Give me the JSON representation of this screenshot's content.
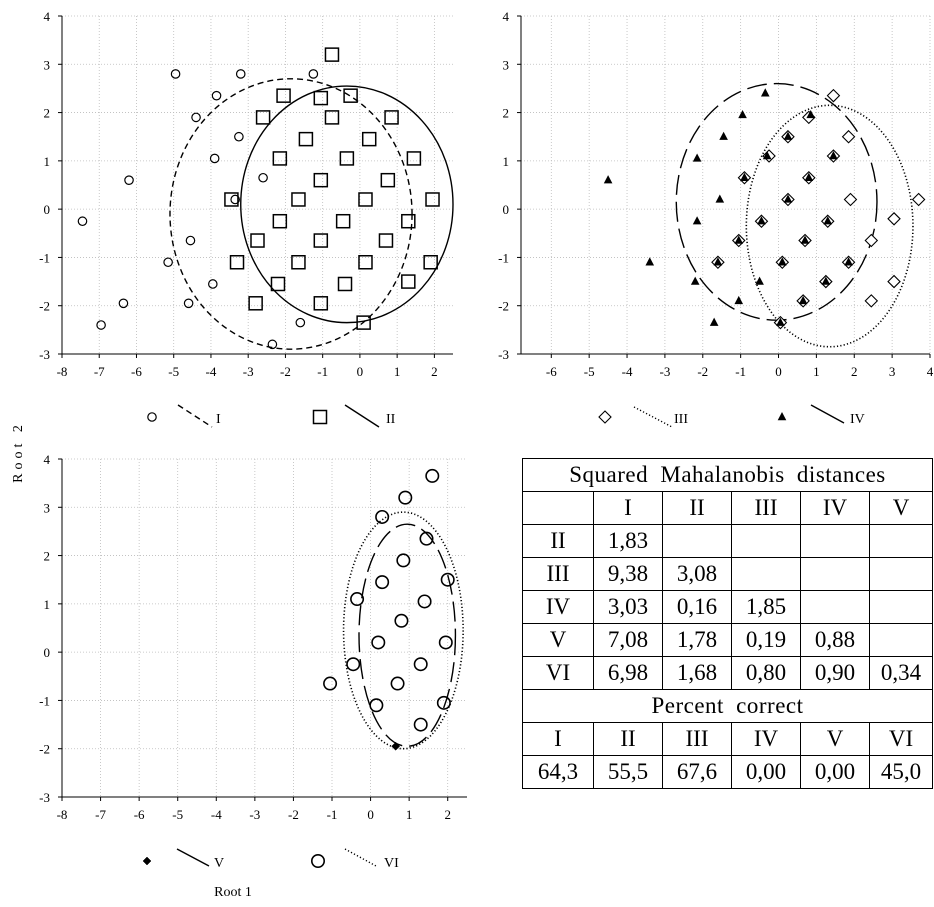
{
  "axis_titles": {
    "x": "Root 1",
    "y": "Root 2"
  },
  "chart_data": [
    {
      "type": "scatter",
      "xlim": [
        -8,
        2.5
      ],
      "ylim": [
        -3,
        4
      ],
      "xticks": [
        "-8",
        "-7",
        "-6",
        "-5",
        "-4",
        "-3",
        "-2",
        "-1",
        "0",
        "1",
        "2"
      ],
      "yticks": [
        "-3",
        "-2",
        "-1",
        "0",
        "1",
        "2",
        "3",
        "4"
      ],
      "grid": true,
      "legend": [
        {
          "label": "I",
          "marker": "circle-small",
          "line": "short-dash"
        },
        {
          "label": "II",
          "marker": "square",
          "line": "solid"
        }
      ],
      "series": [
        {
          "name": "I",
          "marker": "circle-small",
          "points": [
            [
              -7.45,
              -0.25
            ],
            [
              -6.95,
              -2.4
            ],
            [
              -6.35,
              -1.95
            ],
            [
              -6.2,
              0.6
            ],
            [
              -5.15,
              -1.1
            ],
            [
              -4.95,
              2.8
            ],
            [
              -4.6,
              -1.95
            ],
            [
              -4.55,
              -0.65
            ],
            [
              -4.4,
              1.9
            ],
            [
              -3.85,
              2.35
            ],
            [
              -3.9,
              1.05
            ],
            [
              -3.95,
              -1.55
            ],
            [
              -3.35,
              0.2
            ],
            [
              -3.25,
              1.5
            ],
            [
              -3.2,
              2.8
            ],
            [
              -2.6,
              0.65
            ],
            [
              -1.25,
              2.8
            ],
            [
              -1.6,
              -2.35
            ],
            [
              -2.35,
              -2.8
            ]
          ]
        },
        {
          "name": "II",
          "marker": "square",
          "points": [
            [
              -0.75,
              3.2
            ],
            [
              -2.05,
              2.35
            ],
            [
              -1.05,
              2.3
            ],
            [
              -0.25,
              2.35
            ],
            [
              -2.6,
              1.9
            ],
            [
              -0.75,
              1.9
            ],
            [
              0.85,
              1.9
            ],
            [
              -1.45,
              1.45
            ],
            [
              0.25,
              1.45
            ],
            [
              -2.15,
              1.05
            ],
            [
              -0.35,
              1.05
            ],
            [
              1.45,
              1.05
            ],
            [
              -1.05,
              0.6
            ],
            [
              0.75,
              0.6
            ],
            [
              -3.45,
              0.2
            ],
            [
              -1.65,
              0.2
            ],
            [
              0.15,
              0.2
            ],
            [
              1.95,
              0.2
            ],
            [
              -2.15,
              -0.25
            ],
            [
              -0.45,
              -0.25
            ],
            [
              1.3,
              -0.25
            ],
            [
              -2.75,
              -0.65
            ],
            [
              -1.05,
              -0.65
            ],
            [
              0.7,
              -0.65
            ],
            [
              -3.3,
              -1.1
            ],
            [
              -1.65,
              -1.1
            ],
            [
              0.15,
              -1.1
            ],
            [
              1.9,
              -1.1
            ],
            [
              -2.2,
              -1.55
            ],
            [
              -0.4,
              -1.55
            ],
            [
              1.3,
              -1.5
            ],
            [
              -2.8,
              -1.95
            ],
            [
              -1.05,
              -1.95
            ],
            [
              0.1,
              -2.35
            ]
          ]
        }
      ],
      "ellipses": [
        {
          "series": "I",
          "cx": -1.85,
          "cy": -0.1,
          "rx": 3.25,
          "ry": 2.8,
          "style": "short-dash"
        },
        {
          "series": "II",
          "cx": -0.35,
          "cy": 0.1,
          "rx": 2.85,
          "ry": 2.45,
          "style": "solid"
        }
      ]
    },
    {
      "type": "scatter",
      "xlim": [
        -6.8,
        4
      ],
      "ylim": [
        -3,
        4
      ],
      "xticks": [
        "-6",
        "-5",
        "-4",
        "-3",
        "-2",
        "-1",
        "0",
        "1",
        "2",
        "3",
        "4"
      ],
      "yticks": [
        "-3",
        "-2",
        "-1",
        "0",
        "1",
        "2",
        "3",
        "4"
      ],
      "grid": true,
      "legend": [
        {
          "label": "III",
          "marker": "diamond-open",
          "line": "dotted"
        },
        {
          "label": "IV",
          "marker": "triangle-filled",
          "line": "long-dash"
        }
      ],
      "series": [
        {
          "name": "III",
          "marker": "diamond-open",
          "points": [
            [
              1.45,
              2.35
            ],
            [
              1.85,
              1.5
            ],
            [
              0.25,
              1.5
            ],
            [
              0.8,
              1.9
            ],
            [
              -0.25,
              1.1
            ],
            [
              1.45,
              1.1
            ],
            [
              -0.9,
              0.65
            ],
            [
              0.8,
              0.65
            ],
            [
              0.25,
              0.2
            ],
            [
              1.9,
              0.2
            ],
            [
              3.7,
              0.2
            ],
            [
              -0.45,
              -0.25
            ],
            [
              1.3,
              -0.25
            ],
            [
              3.05,
              -0.2
            ],
            [
              -1.05,
              -0.65
            ],
            [
              0.7,
              -0.65
            ],
            [
              2.45,
              -0.65
            ],
            [
              -1.6,
              -1.1
            ],
            [
              0.1,
              -1.1
            ],
            [
              1.85,
              -1.1
            ],
            [
              3.05,
              -1.5
            ],
            [
              1.25,
              -1.5
            ],
            [
              0.65,
              -1.9
            ],
            [
              2.45,
              -1.9
            ],
            [
              0.05,
              -2.35
            ]
          ]
        },
        {
          "name": "IV",
          "marker": "triangle-filled",
          "points": [
            [
              -0.35,
              2.4
            ],
            [
              0.85,
              1.95
            ],
            [
              -0.95,
              1.95
            ],
            [
              -1.45,
              1.5
            ],
            [
              0.25,
              1.5
            ],
            [
              -2.15,
              1.05
            ],
            [
              -0.3,
              1.1
            ],
            [
              1.45,
              1.1
            ],
            [
              -0.9,
              0.65
            ],
            [
              0.8,
              0.65
            ],
            [
              -4.5,
              0.6
            ],
            [
              -1.55,
              0.2
            ],
            [
              0.25,
              0.2
            ],
            [
              -2.15,
              -0.25
            ],
            [
              -0.45,
              -0.25
            ],
            [
              1.3,
              -0.25
            ],
            [
              -1.05,
              -0.65
            ],
            [
              0.7,
              -0.65
            ],
            [
              -3.4,
              -1.1
            ],
            [
              -1.6,
              -1.1
            ],
            [
              0.1,
              -1.1
            ],
            [
              1.85,
              -1.1
            ],
            [
              -2.2,
              -1.5
            ],
            [
              -0.5,
              -1.5
            ],
            [
              1.25,
              -1.5
            ],
            [
              -1.05,
              -1.9
            ],
            [
              0.65,
              -1.9
            ],
            [
              -1.7,
              -2.35
            ],
            [
              0.05,
              -2.35
            ]
          ]
        }
      ],
      "ellipses": [
        {
          "series": "III",
          "cx": 1.35,
          "cy": -0.35,
          "rx": 2.2,
          "ry": 2.5,
          "style": "dotted"
        },
        {
          "series": "IV",
          "cx": -0.05,
          "cy": 0.15,
          "rx": 2.65,
          "ry": 2.45,
          "style": "long-dash"
        }
      ]
    },
    {
      "type": "scatter",
      "xlim": [
        -8,
        2.5
      ],
      "ylim": [
        -3,
        4
      ],
      "xticks": [
        "-8",
        "-7",
        "-6",
        "-5",
        "-4",
        "-3",
        "-2",
        "-1",
        "0",
        "1",
        "2"
      ],
      "yticks": [
        "-3",
        "-2",
        "-1",
        "0",
        "1",
        "2",
        "3",
        "4"
      ],
      "grid": true,
      "legend": [
        {
          "label": "V",
          "marker": "diamond-filled",
          "line": "long-dash"
        },
        {
          "label": "VI",
          "marker": "circle-large",
          "line": "dotted"
        }
      ],
      "series": [
        {
          "name": "V",
          "marker": "diamond-filled",
          "points": [
            [
              0.65,
              -1.95
            ]
          ]
        },
        {
          "name": "VI",
          "marker": "circle-large",
          "points": [
            [
              1.6,
              3.65
            ],
            [
              0.9,
              3.2
            ],
            [
              0.3,
              2.8
            ],
            [
              1.45,
              2.35
            ],
            [
              0.85,
              1.9
            ],
            [
              0.3,
              1.45
            ],
            [
              2.0,
              1.5
            ],
            [
              -0.35,
              1.1
            ],
            [
              1.4,
              1.05
            ],
            [
              0.8,
              0.65
            ],
            [
              0.2,
              0.2
            ],
            [
              1.95,
              0.2
            ],
            [
              -0.45,
              -0.25
            ],
            [
              1.3,
              -0.25
            ],
            [
              -1.05,
              -0.65
            ],
            [
              0.7,
              -0.65
            ],
            [
              0.15,
              -1.1
            ],
            [
              1.9,
              -1.05
            ],
            [
              1.3,
              -1.5
            ]
          ]
        }
      ],
      "ellipses": [
        {
          "series": "V",
          "cx": 0.95,
          "cy": 0.35,
          "rx": 1.25,
          "ry": 2.3,
          "style": "long-dash"
        },
        {
          "series": "VI",
          "cx": 0.85,
          "cy": 0.45,
          "rx": 1.55,
          "ry": 2.45,
          "style": "dotted"
        }
      ]
    },
    {
      "type": "table",
      "title": "Squared Mahalanobis distances",
      "columns": [
        "",
        "I",
        "II",
        "III",
        "IV",
        "V"
      ],
      "rows": [
        [
          "II",
          "1,83",
          "",
          "",
          "",
          ""
        ],
        [
          "III",
          "9,38",
          "3,08",
          "",
          "",
          ""
        ],
        [
          "IV",
          "3,03",
          "0,16",
          "1,85",
          "",
          ""
        ],
        [
          "V",
          "7,08",
          "1,78",
          "0,19",
          "0,88",
          ""
        ],
        [
          "VI",
          "6,98",
          "1,68",
          "0,80",
          "0,90",
          "0,34"
        ]
      ],
      "percent_title": "Percent correct",
      "percent_headers": [
        "I",
        "II",
        "III",
        "IV",
        "V",
        "VI"
      ],
      "percent_values": [
        "64,3",
        "55,5",
        "67,6",
        "0,00",
        "0,00",
        "45,0"
      ]
    }
  ]
}
